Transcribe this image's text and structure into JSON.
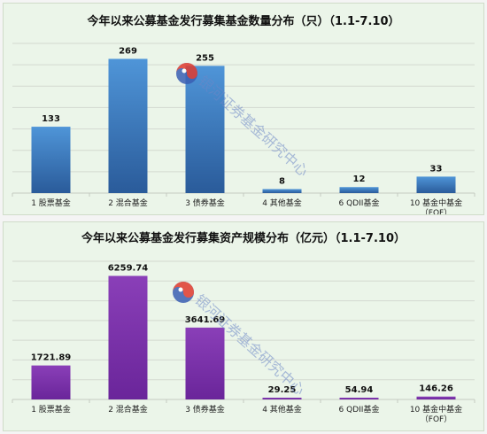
{
  "chart_data": [
    {
      "type": "bar",
      "title": "今年以来公募基金发行募集基金数量分布（只）（1.1-7.10）",
      "categories": [
        [
          "1 股票基金"
        ],
        [
          "2 混合基金"
        ],
        [
          "3 债券基金"
        ],
        [
          "4 其他基金"
        ],
        [
          "6 QDII基金"
        ],
        [
          "10 基金中基金",
          "（FOF）"
        ]
      ],
      "values": [
        133,
        269,
        255,
        8,
        12,
        33
      ],
      "value_labels": [
        "133",
        "269",
        "255",
        "8",
        "12",
        "33"
      ],
      "ylim": [
        0,
        300
      ],
      "grid": true,
      "colors": {
        "bar_top": "#4f95d8",
        "bar_bottom": "#2a5b9a"
      }
    },
    {
      "type": "bar",
      "title": "今年以来公募基金发行募集资产规模分布（亿元）（1.1-7.10）",
      "categories": [
        [
          "1 股票基金"
        ],
        [
          "2 混合基金"
        ],
        [
          "3 债券基金"
        ],
        [
          "4 其他基金"
        ],
        [
          "6 QDII基金"
        ],
        [
          "10 基金中基金",
          "（FOF）"
        ]
      ],
      "values": [
        1721.89,
        6259.74,
        3641.69,
        29.25,
        54.94,
        146.26
      ],
      "value_labels": [
        "1721.89",
        "6259.74",
        "3641.69",
        "29.25",
        "54.94",
        "146.26"
      ],
      "ylim": [
        0,
        7000
      ],
      "grid": true,
      "colors": {
        "bar_top": "#8a3fb8",
        "bar_bottom": "#6a259a"
      }
    }
  ],
  "watermark": {
    "text": "银河证券基金研究中心",
    "logo_icon": "galaxy-taiji-logo-icon",
    "colors": {
      "red": "#e03a2e",
      "blue": "#3a5fb3"
    }
  }
}
